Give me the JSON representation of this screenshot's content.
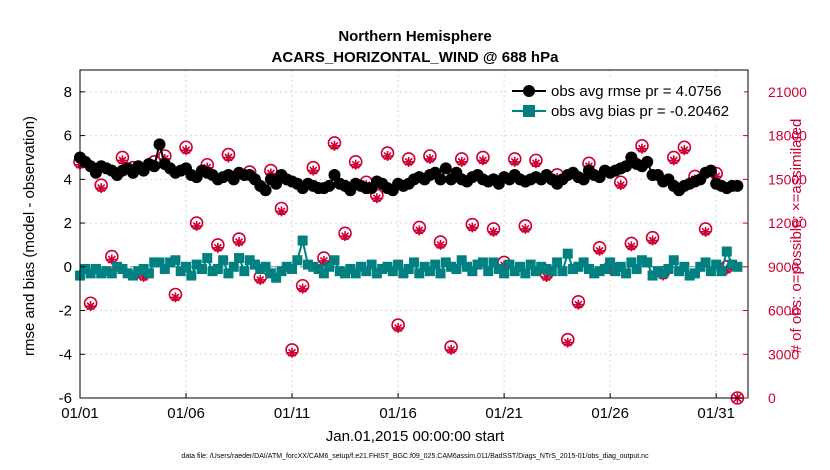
{
  "chart_data": {
    "type": "line",
    "title": "Northern Hemisphere",
    "subtitle": "ACARS_HORIZONTAL_WIND @ 688 hPa",
    "xlabel": "Jan.01,2015 00:00:00 start",
    "ylabel": "rmse and bias (model - observation)",
    "ylabel_right": "# of obs: o=possible; ×=assimilated",
    "footnote": "data file: /Users/raeder/DAI/ATM_forcXX/CAM6_setup/f.e21.FHIST_BGC.f09_025.CAM6assim.011/BadSST/Diags_NTrS_2015-01/obs_diag_output.nc",
    "x_ticks": [
      "01/01",
      "01/06",
      "01/11",
      "01/16",
      "01/21",
      "01/26",
      "01/31"
    ],
    "ylim": [
      -6,
      9
    ],
    "y_ticks": [
      "-6",
      "-4",
      "-2",
      "0",
      "2",
      "4",
      "6",
      "8"
    ],
    "ylim_right": [
      0,
      22500
    ],
    "y_ticks_right": [
      "0",
      "3000",
      "6000",
      "9000",
      "12000",
      "15000",
      "18000",
      "21000"
    ],
    "legend_position": "top-right",
    "series": [
      {
        "name": "obs avg rmse pr = 4.0756",
        "color": "#000000",
        "marker": "circle",
        "x": [
          0.0,
          0.25,
          0.5,
          0.75,
          1.0,
          1.25,
          1.5,
          1.75,
          2.0,
          2.25,
          2.5,
          2.75,
          3.0,
          3.25,
          3.5,
          3.75,
          4.0,
          4.25,
          4.5,
          4.75,
          5.0,
          5.25,
          5.5,
          5.75,
          6.0,
          6.25,
          6.5,
          6.75,
          7.0,
          7.25,
          7.5,
          7.75,
          8.0,
          8.25,
          8.5,
          8.75,
          9.0,
          9.25,
          9.5,
          9.75,
          10.0,
          10.25,
          10.5,
          10.75,
          11.0,
          11.25,
          11.5,
          11.75,
          12.0,
          12.25,
          12.5,
          12.75,
          13.0,
          13.25,
          13.5,
          13.75,
          14.0,
          14.25,
          14.5,
          14.75,
          15.0,
          15.25,
          15.5,
          15.75,
          16.0,
          16.25,
          16.5,
          16.75,
          17.0,
          17.25,
          17.5,
          17.75,
          18.0,
          18.25,
          18.5,
          18.75,
          19.0,
          19.25,
          19.5,
          19.75,
          20.0,
          20.25,
          20.5,
          20.75,
          21.0,
          21.25,
          21.5,
          21.75,
          22.0,
          22.25,
          22.5,
          22.75,
          23.0,
          23.25,
          23.5,
          23.75,
          24.0,
          24.25,
          24.5,
          24.75,
          25.0,
          25.25,
          25.5,
          25.75,
          26.0,
          26.25,
          26.5,
          26.75,
          27.0,
          27.25,
          27.5,
          27.75,
          28.0,
          28.25,
          28.5,
          28.75,
          29.0,
          29.25,
          29.5,
          29.75,
          30.0,
          30.25,
          30.5,
          30.75,
          31.0
        ],
        "y": [
          5.0,
          4.8,
          4.6,
          4.3,
          4.6,
          4.5,
          4.4,
          4.2,
          4.4,
          4.5,
          4.3,
          4.6,
          4.4,
          4.7,
          4.6,
          5.6,
          4.7,
          4.5,
          4.3,
          4.4,
          4.5,
          4.2,
          4.1,
          4.4,
          4.3,
          4.2,
          4.0,
          4.1,
          4.2,
          4.0,
          4.3,
          4.2,
          4.2,
          4.0,
          3.7,
          3.5,
          4.0,
          3.8,
          4.2,
          4.0,
          3.9,
          3.8,
          3.6,
          3.8,
          3.7,
          3.6,
          3.6,
          3.7,
          4.2,
          3.8,
          3.7,
          3.5,
          3.8,
          3.7,
          3.6,
          3.6,
          3.9,
          3.8,
          3.6,
          3.5,
          3.8,
          3.7,
          3.8,
          4.0,
          4.1,
          4.0,
          4.2,
          4.3,
          4.0,
          4.5,
          4.0,
          4.3,
          4.0,
          3.9,
          4.1,
          4.2,
          4.0,
          3.9,
          4.0,
          3.8,
          4.1,
          4.0,
          4.2,
          4.0,
          3.9,
          4.0,
          4.1,
          4.0,
          4.2,
          4.0,
          3.8,
          4.0,
          4.2,
          4.3,
          4.1,
          4.0,
          4.4,
          4.2,
          4.1,
          4.4,
          4.3,
          4.4,
          4.5,
          4.6,
          5.0,
          4.7,
          4.6,
          4.8,
          4.2,
          4.2,
          3.9,
          4.0,
          3.7,
          3.5,
          3.7,
          3.8,
          3.9,
          4.0,
          4.3,
          4.4,
          3.8,
          3.7,
          3.6,
          3.7,
          3.7
        ]
      },
      {
        "name": "obs avg bias pr = -0.20462",
        "color": "#008080",
        "marker": "square",
        "x": [
          0.0,
          0.25,
          0.5,
          0.75,
          1.0,
          1.25,
          1.5,
          1.75,
          2.0,
          2.25,
          2.5,
          2.75,
          3.0,
          3.25,
          3.5,
          3.75,
          4.0,
          4.25,
          4.5,
          4.75,
          5.0,
          5.25,
          5.5,
          5.75,
          6.0,
          6.25,
          6.5,
          6.75,
          7.0,
          7.25,
          7.5,
          7.75,
          8.0,
          8.25,
          8.5,
          8.75,
          9.0,
          9.25,
          9.5,
          9.75,
          10.0,
          10.25,
          10.5,
          10.75,
          11.0,
          11.25,
          11.5,
          11.75,
          12.0,
          12.25,
          12.5,
          12.75,
          13.0,
          13.25,
          13.5,
          13.75,
          14.0,
          14.25,
          14.5,
          14.75,
          15.0,
          15.25,
          15.5,
          15.75,
          16.0,
          16.25,
          16.5,
          16.75,
          17.0,
          17.25,
          17.5,
          17.75,
          18.0,
          18.25,
          18.5,
          18.75,
          19.0,
          19.25,
          19.5,
          19.75,
          20.0,
          20.25,
          20.5,
          20.75,
          21.0,
          21.25,
          21.5,
          21.75,
          22.0,
          22.25,
          22.5,
          22.75,
          23.0,
          23.25,
          23.5,
          23.75,
          24.0,
          24.25,
          24.5,
          24.75,
          25.0,
          25.25,
          25.5,
          25.75,
          26.0,
          26.25,
          26.5,
          26.75,
          27.0,
          27.25,
          27.5,
          27.75,
          28.0,
          28.25,
          28.5,
          28.75,
          29.0,
          29.25,
          29.5,
          29.75,
          30.0,
          30.25,
          30.5,
          30.75,
          31.0
        ],
        "y": [
          -0.4,
          -0.1,
          -0.3,
          -0.1,
          -0.3,
          -0.2,
          -0.3,
          0.0,
          -0.1,
          -0.3,
          -0.4,
          -0.2,
          -0.1,
          -0.3,
          0.2,
          0.2,
          -0.1,
          0.2,
          0.3,
          -0.2,
          0.0,
          -0.4,
          0.1,
          -0.1,
          0.4,
          -0.2,
          -0.1,
          0.3,
          -0.3,
          0.0,
          0.4,
          -0.2,
          0.3,
          0.1,
          -0.1,
          0.0,
          -0.3,
          -0.5,
          -0.2,
          0.0,
          -0.1,
          0.3,
          1.2,
          0.1,
          0.0,
          -0.1,
          -0.3,
          0.0,
          0.3,
          -0.2,
          -0.3,
          -0.1,
          -0.3,
          0.0,
          -0.2,
          0.1,
          -0.3,
          -0.1,
          0.0,
          -0.2,
          0.1,
          -0.3,
          -0.1,
          0.2,
          -0.3,
          0.0,
          -0.2,
          0.1,
          -0.3,
          0.2,
          0.0,
          -0.1,
          0.3,
          0.0,
          -0.2,
          0.1,
          0.2,
          -0.2,
          0.2,
          -0.1,
          -0.3,
          0.1,
          -0.2,
          0.0,
          -0.3,
          0.1,
          -0.2,
          0.0,
          -0.1,
          -0.2,
          0.2,
          -0.2,
          0.6,
          -0.1,
          0.0,
          0.2,
          -0.1,
          -0.3,
          -0.2,
          -0.1,
          0.2,
          -0.2,
          0.0,
          -0.3,
          0.2,
          -0.1,
          0.3,
          0.2,
          -0.4,
          -0.2,
          -0.3,
          -0.1,
          0.3,
          -0.2,
          0.0,
          -0.4,
          -0.3,
          0.0,
          0.2,
          -0.2,
          0.1,
          -0.2,
          0.7,
          0.1,
          0.0
        ]
      }
    ],
    "obs_counts": {
      "axis": "right",
      "color": "#cc0033",
      "x": [
        0.0,
        0.5,
        1.0,
        1.5,
        2.0,
        2.5,
        3.0,
        3.5,
        4.0,
        4.5,
        5.0,
        5.5,
        6.0,
        6.5,
        7.0,
        7.5,
        8.0,
        8.5,
        9.0,
        9.5,
        10.0,
        10.5,
        11.0,
        11.5,
        12.0,
        12.5,
        13.0,
        13.5,
        14.0,
        14.5,
        15.0,
        15.5,
        16.0,
        16.5,
        17.0,
        17.5,
        18.0,
        18.5,
        19.0,
        19.5,
        20.0,
        20.5,
        21.0,
        21.5,
        22.0,
        22.5,
        23.0,
        23.5,
        24.0,
        24.5,
        25.0,
        25.5,
        26.0,
        26.5,
        27.0,
        27.5,
        28.0,
        28.5,
        29.0,
        29.5,
        30.0,
        30.5,
        31.0
      ],
      "possible": [
        16200,
        6500,
        14600,
        9700,
        16500,
        15800,
        8500,
        16200,
        16600,
        7100,
        17200,
        12000,
        16000,
        10500,
        16700,
        10900,
        15500,
        8300,
        15600,
        13000,
        3300,
        7700,
        15800,
        9600,
        17500,
        11300,
        16200,
        14800,
        13900,
        16800,
        5000,
        16400,
        11700,
        16600,
        10700,
        3500,
        16400,
        11900,
        16500,
        11600,
        9300,
        16400,
        11800,
        16300,
        8500,
        15300,
        4000,
        6600,
        16100,
        10300,
        9000,
        14800,
        10600,
        17300,
        11000,
        8600,
        16500,
        17200,
        15200,
        11600,
        15400,
        9000,
        0
      ],
      "assimilated": [
        16000,
        6300,
        14400,
        9500,
        16300,
        15600,
        8300,
        16000,
        16400,
        6900,
        17000,
        11800,
        15800,
        10300,
        16500,
        10700,
        15300,
        8100,
        15400,
        12800,
        3100,
        7500,
        15600,
        9400,
        17300,
        11100,
        16000,
        14600,
        13700,
        16600,
        4800,
        16200,
        11500,
        16400,
        10500,
        3300,
        16200,
        11700,
        16300,
        11400,
        9100,
        16200,
        11600,
        16100,
        8300,
        15100,
        3800,
        6400,
        15900,
        10100,
        8800,
        14600,
        10400,
        17100,
        10800,
        8400,
        16300,
        17000,
        15000,
        11400,
        15200,
        8800,
        0
      ]
    }
  }
}
